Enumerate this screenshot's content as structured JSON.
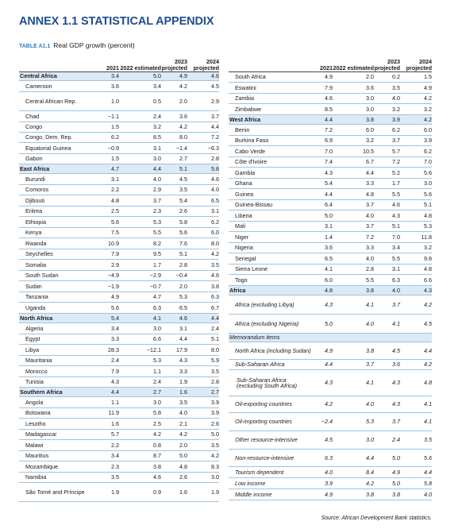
{
  "title": "ANNEX 1.1 STATISTICAL APPENDIX",
  "table_label": "TABLE A1.1",
  "table_title": "Real GDP growth (percent)",
  "headers": {
    "y2021": "2021",
    "y2022": "2022 estimated",
    "y2023": "2023 projected",
    "y2024": "2024 projected"
  },
  "left_rows": [
    {
      "name": "Central Africa",
      "v": [
        "3.4",
        "5.0",
        "4.9",
        "4.6"
      ],
      "type": "region",
      "h": 11
    },
    {
      "name": "Cameroon",
      "v": [
        "3.6",
        "3.4",
        "4.2",
        "4.5"
      ],
      "h": 14
    },
    {
      "name": "Central African Rep.",
      "v": [
        "1.0",
        "0.5",
        "2.0",
        "2.9"
      ],
      "h": 24
    },
    {
      "name": "Chad",
      "v": [
        "-1.1",
        "2.4",
        "3.6",
        "3.7"
      ],
      "h": 14
    },
    {
      "name": "Congo",
      "v": [
        "1.5",
        "3.2",
        "4.2",
        "4.4"
      ],
      "h": 13
    },
    {
      "name": "Congo, Dem. Rep.",
      "v": [
        "6.2",
        "8.5",
        "8.0",
        "7.2"
      ],
      "h": 13
    },
    {
      "name": "Equatorial Guinea",
      "v": [
        "-0.9",
        "3.1",
        "-1.4",
        "-6.3"
      ],
      "h": 14
    },
    {
      "name": "Gabon",
      "v": [
        "1.5",
        "3.0",
        "2.7",
        "2.8"
      ],
      "h": 13
    },
    {
      "name": "East Africa",
      "v": [
        "4.7",
        "4.4",
        "5.1",
        "5.8"
      ],
      "type": "region",
      "h": 12
    },
    {
      "name": "Burundi",
      "v": [
        "3.1",
        "4.0",
        "4.5",
        "4.6"
      ],
      "h": 14
    },
    {
      "name": "Comoros",
      "v": [
        "2.2",
        "2.9",
        "3.5",
        "4.0"
      ],
      "h": 13
    },
    {
      "name": "Djibouti",
      "v": [
        "4.8",
        "3.7",
        "5.4",
        "6.5"
      ],
      "h": 14
    },
    {
      "name": "Eritrea",
      "v": [
        "2.5",
        "2.3",
        "2.6",
        "3.1"
      ],
      "h": 13
    },
    {
      "name": "Ethiopia",
      "v": [
        "5.6",
        "5.3",
        "5.8",
        "6.2"
      ],
      "h": 14
    },
    {
      "name": "Kenya",
      "v": [
        "7.5",
        "5.5",
        "5.6",
        "6.0"
      ],
      "h": 13
    },
    {
      "name": "Rwanda",
      "v": [
        "10.9",
        "8.2",
        "7.6",
        "8.0"
      ],
      "h": 14
    },
    {
      "name": "Seychelles",
      "v": [
        "7.9",
        "9.5",
        "5.1",
        "4.2"
      ],
      "h": 13
    },
    {
      "name": "Somalia",
      "v": [
        "2.9",
        "1.7",
        "2.8",
        "3.5"
      ],
      "h": 14
    },
    {
      "name": "South Sudan",
      "v": [
        "-4.9",
        "-2.9",
        "-0.4",
        "4.6"
      ],
      "h": 13
    },
    {
      "name": "Sudan",
      "v": [
        "-1.9",
        "-0.7",
        "2.0",
        "3.8"
      ],
      "h": 14
    },
    {
      "name": "Tanzania",
      "v": [
        "4.9",
        "4.7",
        "5.3",
        "6.3"
      ],
      "h": 13
    },
    {
      "name": "Uganda",
      "v": [
        "5.6",
        "6.3",
        "6.5",
        "6.7"
      ],
      "h": 14
    },
    {
      "name": "North Africa",
      "v": [
        "5.4",
        "4.1",
        "4.6",
        "4.4"
      ],
      "type": "region",
      "h": 12
    },
    {
      "name": "Algeria",
      "v": [
        "3.4",
        "3.0",
        "3.1",
        "2.4"
      ],
      "h": 14
    },
    {
      "name": "Egypt",
      "v": [
        "3.3",
        "6.6",
        "4.4",
        "5.1"
      ],
      "h": 13
    },
    {
      "name": "Libya",
      "v": [
        "28.3",
        "-12.1",
        "17.9",
        "8.0"
      ],
      "h": 14
    },
    {
      "name": "Mauritania",
      "v": [
        "2.4",
        "5.3",
        "4.3",
        "5.9"
      ],
      "h": 13
    },
    {
      "name": "Morocco",
      "v": [
        "7.9",
        "1.1",
        "3.3",
        "3.5"
      ],
      "h": 14
    },
    {
      "name": "Tunisia",
      "v": [
        "4.3",
        "2.4",
        "1.9",
        "2.8"
      ],
      "h": 13
    },
    {
      "name": "Southern Africa",
      "v": [
        "4.4",
        "2.7",
        "1.6",
        "2.7"
      ],
      "type": "region",
      "h": 12
    },
    {
      "name": "Angola",
      "v": [
        "1.1",
        "3.0",
        "3.5",
        "3.9"
      ],
      "h": 14
    },
    {
      "name": "Botswana",
      "v": [
        "11.9",
        "5.8",
        "4.0",
        "3.9"
      ],
      "h": 13
    },
    {
      "name": "Lesotho",
      "v": [
        "1.6",
        "2.5",
        "2.1",
        "2.6"
      ],
      "h": 14
    },
    {
      "name": "Madagascar",
      "v": [
        "5.7",
        "4.2",
        "4.2",
        "5.0"
      ],
      "h": 13
    },
    {
      "name": "Malawi",
      "v": [
        "2.2",
        "0.8",
        "2.0",
        "3.5"
      ],
      "h": 14
    },
    {
      "name": "Mauritius",
      "v": [
        "3.4",
        "8.7",
        "5.0",
        "4.2"
      ],
      "h": 13
    },
    {
      "name": "Mozambique",
      "v": [
        "2.3",
        "3.8",
        "4.8",
        "8.3"
      ],
      "h": 14
    },
    {
      "name": "Namibia",
      "v": [
        "3.5",
        "4.6",
        "2.6",
        "3.0"
      ],
      "h": 13
    },
    {
      "name": "São Tomé and Príncipe",
      "v": [
        "1.9",
        "0.9",
        "1.6",
        "1.9"
      ],
      "h": 24
    }
  ],
  "right_rows": [
    {
      "name": "South Africa",
      "v": [
        "4.9",
        "2.0",
        "0.2",
        "1.5"
      ],
      "h": 13
    },
    {
      "name": "Eswatini",
      "v": [
        "7.9",
        "3.6",
        "3.5",
        "4.9"
      ],
      "h": 14
    },
    {
      "name": "Zambia",
      "v": [
        "4.6",
        "3.0",
        "4.0",
        "4.2"
      ],
      "h": 13
    },
    {
      "name": "Zimbabwe",
      "v": [
        "8.5",
        "3.0",
        "3.2",
        "3.2"
      ],
      "h": 14
    },
    {
      "name": "West Africa",
      "v": [
        "4.4",
        "3.8",
        "3.9",
        "4.2"
      ],
      "type": "region",
      "h": 12
    },
    {
      "name": "Benin",
      "v": [
        "7.2",
        "6.0",
        "6.2",
        "6.0"
      ],
      "h": 14
    },
    {
      "name": "Burkina Faso",
      "v": [
        "6.9",
        "3.2",
        "3.7",
        "3.9"
      ],
      "h": 13
    },
    {
      "name": "Cabo Verde",
      "v": [
        "7.0",
        "10.5",
        "5.7",
        "6.2"
      ],
      "h": 14
    },
    {
      "name": "Côte d'Ivoire",
      "v": [
        "7.4",
        "6.7",
        "7.2",
        "7.0"
      ],
      "h": 13
    },
    {
      "name": "Gambia",
      "v": [
        "4.3",
        "4.4",
        "5.2",
        "5.6"
      ],
      "h": 14
    },
    {
      "name": "Ghana",
      "v": [
        "5.4",
        "3.3",
        "1.7",
        "3.0"
      ],
      "h": 13
    },
    {
      "name": "Guinea",
      "v": [
        "4.4",
        "4.8",
        "5.5",
        "5.6"
      ],
      "h": 14
    },
    {
      "name": "Guinea-Bissau",
      "v": [
        "6.4",
        "3.7",
        "4.6",
        "5.1"
      ],
      "h": 13
    },
    {
      "name": "Liberia",
      "v": [
        "5.0",
        "4.0",
        "4.3",
        "4.8"
      ],
      "h": 14
    },
    {
      "name": "Mali",
      "v": [
        "3.1",
        "3.7",
        "5.1",
        "5.3"
      ],
      "h": 13
    },
    {
      "name": "Niger",
      "v": [
        "1.4",
        "7.2",
        "7.0",
        "11.8"
      ],
      "h": 14
    },
    {
      "name": "Nigeria",
      "v": [
        "3.6",
        "3.3",
        "3.4",
        "3.2"
      ],
      "h": 13
    },
    {
      "name": "Senegal",
      "v": [
        "6.5",
        "4.0",
        "5.5",
        "9.8"
      ],
      "h": 14
    },
    {
      "name": "Sierra Leone",
      "v": [
        "4.1",
        "2.8",
        "3.1",
        "4.8"
      ],
      "h": 13
    },
    {
      "name": "Togo",
      "v": [
        "6.0",
        "5.5",
        "6.3",
        "6.6"
      ],
      "h": 14
    },
    {
      "name": "Africa",
      "v": [
        "4.8",
        "3.8",
        "4.0",
        "4.3"
      ],
      "type": "region",
      "h": 12
    },
    {
      "name": "Africa (excluding Libya)",
      "v": [
        "4.3",
        "4.1",
        "3.7",
        "4.2"
      ],
      "type": "ital",
      "h": 24
    },
    {
      "name": "Africa (excluding Nigeria)",
      "v": [
        "5.0",
        "4.0",
        "4.1",
        "4.5"
      ],
      "type": "ital",
      "h": 24
    },
    {
      "name": "Memorandum items",
      "v": [
        "",
        "",
        "",
        ""
      ],
      "type": "memo",
      "h": 11
    },
    {
      "name": "North Africa (including Sudan)",
      "v": [
        "4.9",
        "3.8",
        "4.5",
        "4.4"
      ],
      "type": "ital",
      "h": 22
    },
    {
      "name": "Sub-Saharan Africa",
      "v": [
        "4.4",
        "3.7",
        "3.6",
        "4.2"
      ],
      "type": "ital",
      "h": 13
    },
    {
      "name": "Sub-Saharan Africa (excluding South Africa)",
      "v": [
        "4.3",
        "4.1",
        "4.3",
        "4.8"
      ],
      "type": "italsub",
      "h": 33
    },
    {
      "name": "Oil-exporting countries",
      "v": [
        "4.2",
        "4.0",
        "4.3",
        "4.1"
      ],
      "type": "ital",
      "h": 21
    },
    {
      "name": "Oil-importing countries",
      "v": [
        "-2.4",
        "5.3",
        "3.7",
        "4.1"
      ],
      "type": "ital",
      "h": 23
    },
    {
      "name": "Other resource-intensive",
      "v": [
        "4.5",
        "3.0",
        "2.4",
        "3.5"
      ],
      "type": "ital",
      "h": 23
    },
    {
      "name": "Non-resource-intensive",
      "v": [
        "6.3",
        "4.4",
        "5.0",
        "5.6"
      ],
      "type": "ital",
      "h": 22
    },
    {
      "name": "Tourism dependent",
      "v": [
        "4.0",
        "8.4",
        "4.9",
        "4.4"
      ],
      "type": "ital",
      "h": 14
    },
    {
      "name": "Low income",
      "v": [
        "3.9",
        "4.2",
        "5.0",
        "5.8"
      ],
      "type": "ital",
      "h": 14
    },
    {
      "name": "Middle income",
      "v": [
        "4.9",
        "3.8",
        "3.8",
        "4.0"
      ],
      "type": "ital",
      "h": 14
    }
  ],
  "source": "Source: African Development Bank statistics.",
  "colors": {
    "title": "#1f4e8c",
    "label": "#2a7fc4",
    "shade": "#dceaf6",
    "rule": "#9ec3e0"
  }
}
